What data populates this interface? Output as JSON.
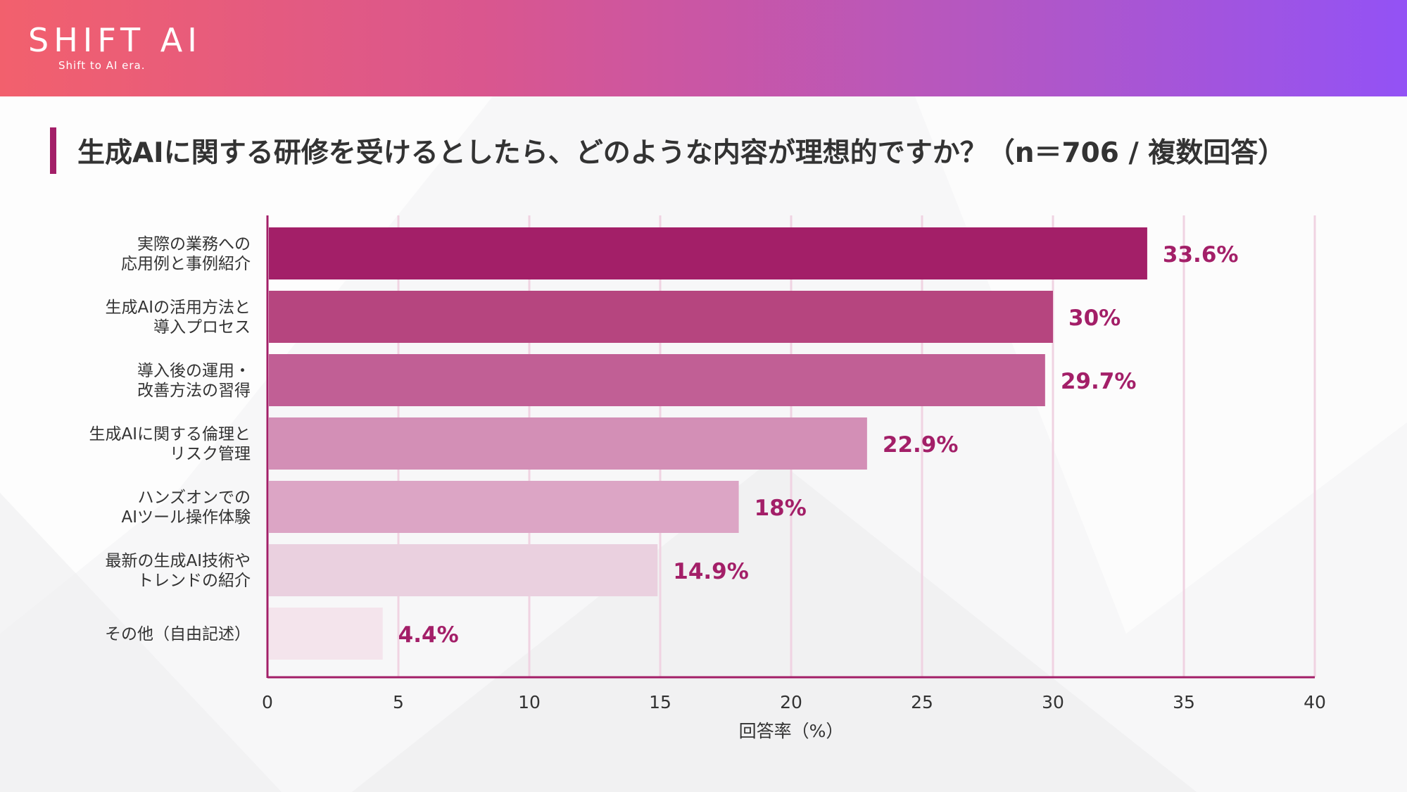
{
  "header": {
    "logo_title": "SHIFT AI",
    "logo_tagline": "Shift to AI era."
  },
  "colors": {
    "accent": "#a31f68",
    "bars": [
      "#a31f68",
      "#b6457f",
      "#c15f95",
      "#d38fb6",
      "#dca5c5",
      "#ead0df",
      "#f4e4ec"
    ]
  },
  "chart_data": {
    "type": "bar",
    "orientation": "horizontal",
    "title": "生成AIに関する研修を受けるとしたら、どのような内容が理想的ですか？（n＝706 / 複数回答）",
    "xlabel": "回答率（%）",
    "ylabel": "",
    "xlim": [
      0,
      40
    ],
    "xticks": [
      0,
      5,
      10,
      15,
      20,
      25,
      30,
      35,
      40
    ],
    "grid": true,
    "categories": [
      [
        "実際の業務への",
        "応用例と事例紹介"
      ],
      [
        "生成AIの活用方法と",
        "導入プロセス"
      ],
      [
        "導入後の運用・",
        "改善方法の習得"
      ],
      [
        "生成AIに関する倫理と",
        "リスク管理"
      ],
      [
        "ハンズオンでの",
        "AIツール操作体験"
      ],
      [
        "最新の生成AI技術や",
        "トレンドの紹介"
      ],
      [
        "その他（自由記述）"
      ]
    ],
    "values": [
      33.6,
      30,
      29.7,
      22.9,
      18,
      14.9,
      4.4
    ],
    "value_labels": [
      "33.6%",
      "30%",
      "29.7%",
      "22.9%",
      "18%",
      "14.9%",
      "4.4%"
    ]
  }
}
